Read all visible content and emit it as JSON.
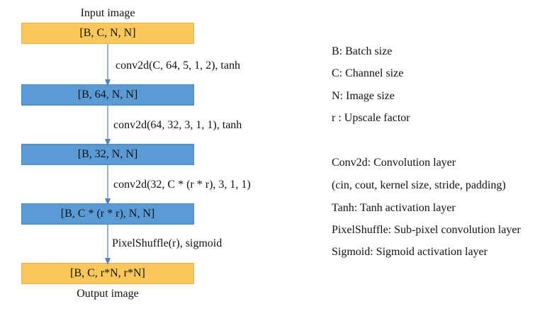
{
  "diagram": {
    "input_caption": "Input image",
    "output_caption": "Output image",
    "boxes": [
      {
        "label": "[B, C, N, N]"
      },
      {
        "label": "[B, 64, N, N]"
      },
      {
        "label": "[B, 32, N, N]"
      },
      {
        "label": "[B, C * (r * r), N, N]"
      },
      {
        "label": "[B, C, r*N, r*N]"
      }
    ],
    "operations": [
      "conv2d(C, 64, 5, 1, 2), tanh",
      "conv2d(64, 32, 3, 1, 1), tanh",
      "conv2d(32, C * (r * r), 3, 1, 1)",
      "PixelShuffle(r), sigmoid"
    ]
  },
  "legend": {
    "lines": [
      "B: Batch size",
      "C: Channel size",
      "N: Image size",
      "r : Upscale factor",
      "Conv2d: Convolution layer",
      "(cin, cout, kernel size, stride, padding)",
      "Tanh: Tanh activation layer",
      "PixelShuffle: Sub-pixel convolution layer",
      "Sigmoid: Sigmoid activation layer"
    ]
  },
  "colors": {
    "io_box": "#fac75d",
    "layer_box": "#5b9bd5",
    "arrow": "#4f81bd"
  }
}
